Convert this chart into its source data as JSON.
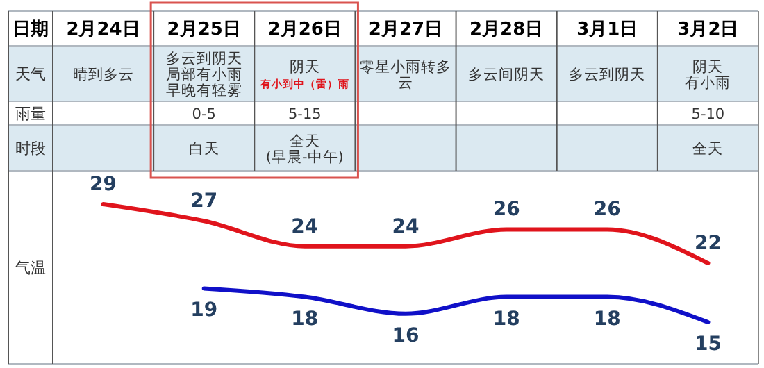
{
  "chart_data": {
    "type": "line",
    "xlabel": "日期",
    "ylabel": "气温",
    "categories": [
      "2月24日",
      "2月25日",
      "2月26日",
      "2月27日",
      "2月28日",
      "3月1日",
      "3月2日"
    ],
    "series": [
      {
        "color": "#e0141c",
        "values": [
          29,
          27,
          24,
          24,
          26,
          26,
          22
        ]
      },
      {
        "color": "#1010c8",
        "values": [
          null,
          19,
          18,
          16,
          18,
          18,
          15
        ]
      }
    ],
    "data_labels": true,
    "annotations": [
      "天气",
      "晴到多云",
      "多云到阴天局部有小雨早晚有轻雾",
      "阴天",
      "有小到中（雷）雨",
      "零星小雨转多云",
      "多云间阴天",
      "多云到阴天",
      "阴天有小雨",
      "雨量",
      "0-5",
      "5-15",
      "5-10",
      "时段",
      "白天",
      "全天(早晨-中午)",
      "全天"
    ]
  }
}
